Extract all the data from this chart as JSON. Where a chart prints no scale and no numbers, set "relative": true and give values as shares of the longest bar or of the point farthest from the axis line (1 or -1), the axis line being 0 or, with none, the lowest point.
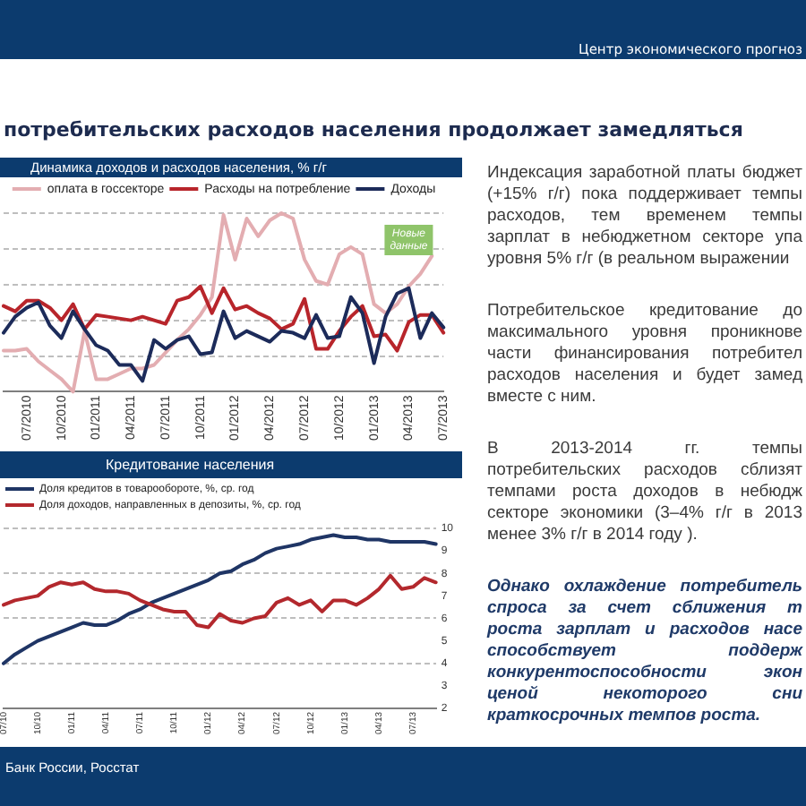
{
  "chart_data": [
    {
      "type": "line",
      "title": "Динамика доходов и расходов населения, % г/г",
      "relative": true,
      "categories": [
        null,
        null,
        "07/2010",
        null,
        null,
        "10/2010",
        null,
        null,
        "01/2011",
        null,
        null,
        "04/2011",
        null,
        null,
        "07/2011",
        null,
        null,
        "10/2011",
        null,
        null,
        "01/2012",
        null,
        null,
        "04/2012",
        null,
        null,
        "07/2012",
        null,
        null,
        "10/2012",
        null,
        null,
        "01/2013",
        null,
        null,
        "04/2013",
        null,
        null,
        "07/2013"
      ],
      "series": [
        {
          "name": "оплата в госсекторе",
          "color": "#e3adb1",
          "values": [
            0.23,
            0.23,
            0.24,
            0.17,
            0.12,
            0.07,
            0,
            0.34,
            0.07,
            0.07,
            0.1,
            0.13,
            0.13,
            0.15,
            0.22,
            0.29,
            0.35,
            0.43,
            0.53,
            0.99,
            0.74,
            0.97,
            0.87,
            0.96,
            1.0,
            0.97,
            0.74,
            0.62,
            0.6,
            0.77,
            0.81,
            0.77,
            0.49,
            0.44,
            0.49,
            0.59,
            0.66,
            0.76,
            null
          ]
        },
        {
          "name": "Расходы на потребление",
          "color": "#b8252b",
          "values": [
            0.48,
            0.45,
            0.51,
            0.51,
            0.47,
            0.4,
            0.49,
            0.35,
            0.43,
            0.42,
            0.41,
            0.4,
            0.42,
            0.4,
            0.38,
            0.51,
            0.53,
            0.59,
            0.44,
            0.58,
            0.46,
            0.48,
            0.44,
            0.41,
            0.35,
            0.38,
            0.52,
            0.24,
            0.24,
            0.34,
            0.42,
            0.48,
            0.31,
            0.32,
            0.23,
            0.39,
            0.43,
            0.43,
            0.33
          ]
        },
        {
          "name": "Доходы",
          "color": "#1c2b5a",
          "values": [
            0.33,
            0.42,
            0.47,
            0.5,
            0.37,
            0.3,
            0.45,
            0.35,
            0.26,
            0.23,
            0.15,
            0.15,
            0.06,
            0.29,
            0.24,
            0.29,
            0.31,
            0.21,
            0.22,
            0.45,
            0.3,
            0.34,
            0.31,
            0.28,
            0.34,
            0.33,
            0.3,
            0.43,
            0.3,
            0.31,
            0.53,
            0.44,
            0.16,
            0.42,
            0.55,
            0.58,
            0.3,
            0.44,
            0.36
          ]
        }
      ],
      "annotations": [
        {
          "text": "Новые данные",
          "x": "04/2013",
          "y": 0.85
        }
      ],
      "grid": "y",
      "legend": "top"
    },
    {
      "type": "line",
      "title": "Кредитование населения",
      "categories": [
        "07/10",
        null,
        null,
        "10/10",
        null,
        null,
        "01/11",
        null,
        null,
        "04/11",
        null,
        null,
        "07/11",
        null,
        null,
        "10/11",
        null,
        null,
        "01/12",
        null,
        null,
        "04/12",
        null,
        null,
        "07/12",
        null,
        null,
        "10/12",
        null,
        null,
        "01/13",
        null,
        null,
        "04/13",
        null,
        null,
        "07/13",
        null,
        null
      ],
      "series": [
        {
          "name": "Доля кредитов в товарообороте, %, ср. год",
          "color": "#1f3565",
          "values": [
            4.0,
            4.4,
            4.7,
            5.0,
            5.2,
            5.4,
            5.6,
            5.8,
            5.7,
            5.7,
            5.9,
            6.2,
            6.4,
            6.7,
            6.9,
            7.1,
            7.3,
            7.5,
            7.7,
            8.0,
            8.1,
            8.4,
            8.6,
            8.9,
            9.1,
            9.2,
            9.3,
            9.5,
            9.6,
            9.7,
            9.6,
            9.6,
            9.5,
            9.5,
            9.4,
            9.4,
            9.4,
            9.4,
            9.3
          ]
        },
        {
          "name": "Доля доходов, направленных в депозиты, %, ср. год",
          "color": "#b3282d",
          "values": [
            6.6,
            6.8,
            6.9,
            7.0,
            7.4,
            7.6,
            7.5,
            7.6,
            7.3,
            7.2,
            7.2,
            7.1,
            6.8,
            6.6,
            6.4,
            6.3,
            6.3,
            5.7,
            5.6,
            6.2,
            5.9,
            5.8,
            6.0,
            6.1,
            6.7,
            6.9,
            6.6,
            6.8,
            6.3,
            6.8,
            6.8,
            6.6,
            6.9,
            7.3,
            7.9,
            7.3,
            7.4,
            7.8,
            7.6
          ]
        }
      ],
      "ylim": [
        2,
        10
      ],
      "yticks": [
        2,
        3,
        4,
        5,
        6,
        7,
        8,
        9,
        10
      ],
      "grid": "y",
      "legend": "top left"
    },
    {
      "type": "other",
      "title": "потребительских расходов населения продолжает замедляться",
      "annotations": [
        "Центр экономического прогноз",
        "Индексация заработной платы бюджет\n(+15% г/г) пока поддерживает темпы\nрасходов, тем временем темпы\nзарплат в небюджетном секторе упа\nуровня 5% г/г (в реальном выражении",
        "Потребительское кредитование до\nмаксимального уровня проникнове\nчасти финансирования потребител\nрасходов населения и будет замед\nвместе с ним.",
        "В 2013-2014 гг. темпы\nпотребительских расходов сблизят\nтемпами роста доходов в небюдж\nсекторе экономики (3–4% г/г в 2013\nменее 3% г/г в 2014 году ).",
        "Однако охлаждение потребитель\nспроса за счет сближения т\nроста зарплат и расходов насе\nспособствует поддерж\nконкурентоспособности экон\nценой некоторого сни\nкраткосрочных темпов роста.",
        "Банк России, Росстат"
      ]
    }
  ]
}
